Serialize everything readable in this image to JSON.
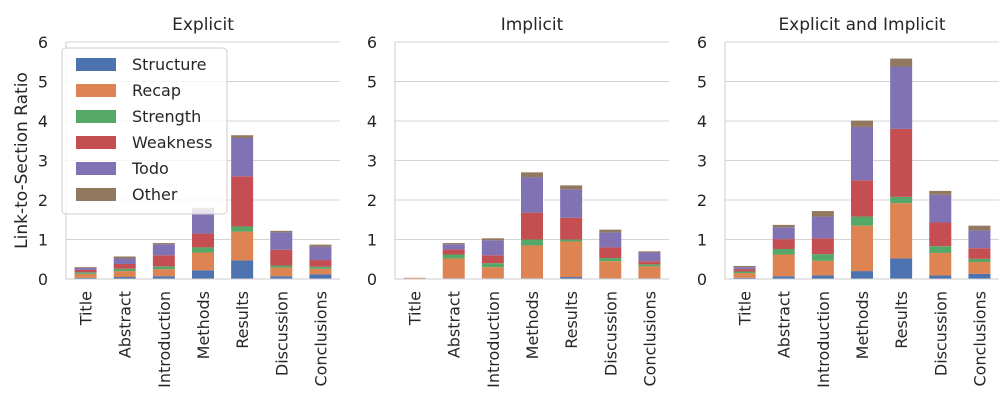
{
  "ylabel": "Link-to-Section Ratio",
  "colors": {
    "Structure": "#4c72b0",
    "Recap": "#dd8452",
    "Strength": "#55a868",
    "Weakness": "#c44e52",
    "Todo": "#8172b3",
    "Other": "#937860"
  },
  "chart_data": [
    {
      "type": "bar",
      "stacked": true,
      "title": "Explicit",
      "categories": [
        "Title",
        "Abstract",
        "Introduction",
        "Methods",
        "Results",
        "Discussion",
        "Conclusions"
      ],
      "ylim": [
        0,
        6
      ],
      "yticks": [
        0,
        1,
        2,
        3,
        4,
        5,
        6
      ],
      "grid": true,
      "legend": "top-left",
      "series": [
        {
          "name": "Structure",
          "values": [
            0.03,
            0.05,
            0.07,
            0.22,
            0.47,
            0.07,
            0.12
          ]
        },
        {
          "name": "Recap",
          "values": [
            0.1,
            0.15,
            0.18,
            0.45,
            0.73,
            0.22,
            0.14
          ]
        },
        {
          "name": "Strength",
          "values": [
            0.04,
            0.06,
            0.07,
            0.13,
            0.13,
            0.05,
            0.05
          ]
        },
        {
          "name": "Weakness",
          "values": [
            0.06,
            0.12,
            0.28,
            0.35,
            1.27,
            0.4,
            0.17
          ]
        },
        {
          "name": "Todo",
          "values": [
            0.05,
            0.14,
            0.28,
            0.6,
            0.97,
            0.44,
            0.34
          ]
        },
        {
          "name": "Other",
          "values": [
            0.02,
            0.05,
            0.03,
            0.05,
            0.07,
            0.04,
            0.05
          ]
        }
      ]
    },
    {
      "type": "bar",
      "stacked": true,
      "title": "Implicit",
      "categories": [
        "Title",
        "Abstract",
        "Introduction",
        "Methods",
        "Results",
        "Discussion",
        "Conclusions"
      ],
      "ylim": [
        0,
        6
      ],
      "yticks": [
        0,
        1,
        2,
        3,
        4,
        5,
        6
      ],
      "grid": true,
      "series": [
        {
          "name": "Structure",
          "values": [
            0.01,
            0.02,
            0.02,
            0.02,
            0.05,
            0.02,
            0.02
          ]
        },
        {
          "name": "Recap",
          "values": [
            0.02,
            0.5,
            0.28,
            0.83,
            0.9,
            0.43,
            0.3
          ]
        },
        {
          "name": "Strength",
          "values": [
            0.0,
            0.1,
            0.1,
            0.15,
            0.05,
            0.08,
            0.05
          ]
        },
        {
          "name": "Weakness",
          "values": [
            0.0,
            0.13,
            0.2,
            0.68,
            0.55,
            0.27,
            0.08
          ]
        },
        {
          "name": "Todo",
          "values": [
            0.0,
            0.13,
            0.38,
            0.9,
            0.72,
            0.38,
            0.22
          ]
        },
        {
          "name": "Other",
          "values": [
            0.0,
            0.03,
            0.05,
            0.12,
            0.1,
            0.07,
            0.03
          ]
        }
      ]
    },
    {
      "type": "bar",
      "stacked": true,
      "title": "Explicit and Implicit",
      "categories": [
        "Title",
        "Abstract",
        "Introduction",
        "Methods",
        "Results",
        "Discussion",
        "Conclusions"
      ],
      "ylim": [
        0,
        6
      ],
      "yticks": [
        0,
        1,
        2,
        3,
        4,
        5,
        6
      ],
      "grid": true,
      "series": [
        {
          "name": "Structure",
          "values": [
            0.03,
            0.07,
            0.09,
            0.2,
            0.52,
            0.09,
            0.13
          ]
        },
        {
          "name": "Recap",
          "values": [
            0.12,
            0.55,
            0.37,
            1.15,
            1.4,
            0.57,
            0.3
          ]
        },
        {
          "name": "Strength",
          "values": [
            0.04,
            0.14,
            0.17,
            0.23,
            0.16,
            0.17,
            0.08
          ]
        },
        {
          "name": "Weakness",
          "values": [
            0.06,
            0.25,
            0.4,
            0.92,
            1.72,
            0.6,
            0.27
          ]
        },
        {
          "name": "Todo",
          "values": [
            0.05,
            0.3,
            0.55,
            1.35,
            1.58,
            0.7,
            0.45
          ]
        },
        {
          "name": "Other",
          "values": [
            0.03,
            0.06,
            0.14,
            0.16,
            0.2,
            0.1,
            0.12
          ]
        }
      ]
    }
  ]
}
